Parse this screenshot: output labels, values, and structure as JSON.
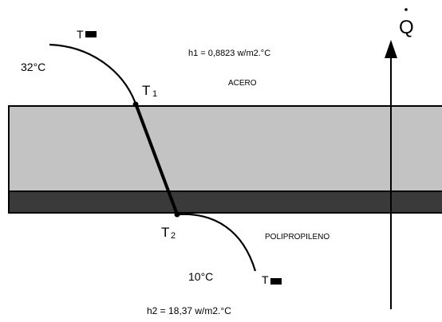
{
  "labels": {
    "t_inf_top": "T",
    "t_inf_bottom": "T",
    "temp_left": "32°C",
    "h1": "h1 = 0,8823 w/m2.°C",
    "t1_main": "T",
    "t1_sub": "1",
    "acero": "ACERO",
    "t2_main": "T",
    "t2_sub": "2",
    "polipropileno": "POLIPROPILENO",
    "temp_right": "10°C",
    "h2": "h2 = 18,37  w/m2.°C",
    "heat_flux_symbol": "Q"
  },
  "colors": {
    "steel_layer": "#c3c3c3",
    "polypropylene_layer": "#3a3a3a",
    "line": "#000000"
  }
}
